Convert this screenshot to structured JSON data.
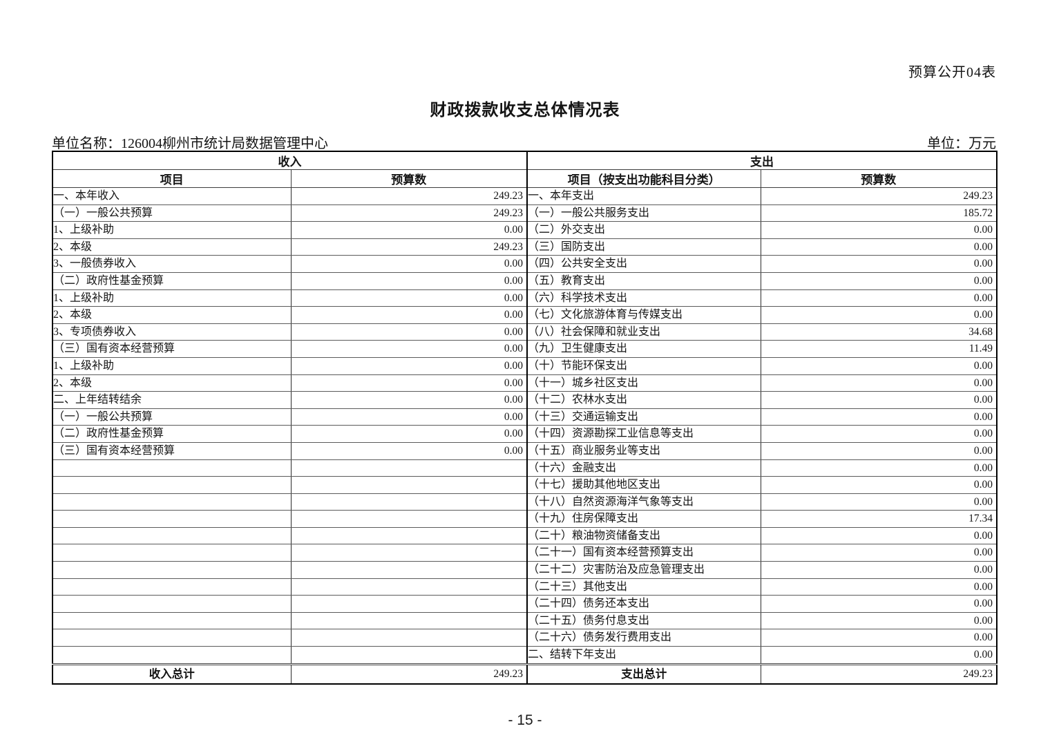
{
  "header": {
    "doc_label": "预算公开04表",
    "title": "财政拨款收支总体情况表",
    "unit_name": "单位名称：126004柳州市统计局数据管理中心",
    "unit": "单位：万元"
  },
  "table": {
    "income_header": "收入",
    "expense_header": "支出",
    "col_headers": [
      "项目",
      "预算数",
      "项目（按支出功能科目分类）",
      "预算数"
    ],
    "rows": [
      {
        "income_label": "一、本年收入",
        "income_value": "249.23",
        "income_level": 0,
        "expense_label": "一、本年支出",
        "expense_value": "249.23",
        "expense_level": 0
      },
      {
        "income_label": "（一）一般公共预算",
        "income_value": "249.23",
        "income_level": 1,
        "expense_label": "（一）一般公共服务支出",
        "expense_value": "185.72",
        "expense_level": 1
      },
      {
        "income_label": "1、上级补助",
        "income_value": "0.00",
        "income_level": 2,
        "expense_label": "（二）外交支出",
        "expense_value": "0.00",
        "expense_level": 1
      },
      {
        "income_label": "2、本级",
        "income_value": "249.23",
        "income_level": 2,
        "expense_label": "（三）国防支出",
        "expense_value": "0.00",
        "expense_level": 1
      },
      {
        "income_label": "3、一般债券收入",
        "income_value": "0.00",
        "income_level": 2,
        "expense_label": "（四）公共安全支出",
        "expense_value": "0.00",
        "expense_level": 1
      },
      {
        "income_label": "（二）政府性基金预算",
        "income_value": "0.00",
        "income_level": 1,
        "expense_label": "（五）教育支出",
        "expense_value": "0.00",
        "expense_level": 1
      },
      {
        "income_label": "1、上级补助",
        "income_value": "0.00",
        "income_level": 2,
        "expense_label": "（六）科学技术支出",
        "expense_value": "0.00",
        "expense_level": 1
      },
      {
        "income_label": "2、本级",
        "income_value": "0.00",
        "income_level": 2,
        "expense_label": "（七）文化旅游体育与传媒支出",
        "expense_value": "0.00",
        "expense_level": 1
      },
      {
        "income_label": "3、专项债券收入",
        "income_value": "0.00",
        "income_level": 2,
        "expense_label": "（八）社会保障和就业支出",
        "expense_value": "34.68",
        "expense_level": 1
      },
      {
        "income_label": "（三）国有资本经营预算",
        "income_value": "0.00",
        "income_level": 1,
        "expense_label": "（九）卫生健康支出",
        "expense_value": "11.49",
        "expense_level": 1
      },
      {
        "income_label": "1、上级补助",
        "income_value": "0.00",
        "income_level": 2,
        "expense_label": "（十）节能环保支出",
        "expense_value": "0.00",
        "expense_level": 1
      },
      {
        "income_label": "2、本级",
        "income_value": "0.00",
        "income_level": 2,
        "expense_label": "（十一）城乡社区支出",
        "expense_value": "0.00",
        "expense_level": 1
      },
      {
        "income_label": "二、上年结转结余",
        "income_value": "0.00",
        "income_level": 0,
        "expense_label": "（十二）农林水支出",
        "expense_value": "0.00",
        "expense_level": 1
      },
      {
        "income_label": "（一）一般公共预算",
        "income_value": "0.00",
        "income_level": 1,
        "expense_label": "（十三）交通运输支出",
        "expense_value": "0.00",
        "expense_level": 1
      },
      {
        "income_label": "（二）政府性基金预算",
        "income_value": "0.00",
        "income_level": 1,
        "expense_label": "（十四）资源勘探工业信息等支出",
        "expense_value": "0.00",
        "expense_level": 1
      },
      {
        "income_label": "（三）国有资本经营预算",
        "income_value": "0.00",
        "income_level": 1,
        "expense_label": "（十五）商业服务业等支出",
        "expense_value": "0.00",
        "expense_level": 1
      },
      {
        "income_label": "",
        "income_value": "",
        "income_level": 0,
        "expense_label": "（十六）金融支出",
        "expense_value": "0.00",
        "expense_level": 1
      },
      {
        "income_label": "",
        "income_value": "",
        "income_level": 0,
        "expense_label": "（十七）援助其他地区支出",
        "expense_value": "0.00",
        "expense_level": 1
      },
      {
        "income_label": "",
        "income_value": "",
        "income_level": 0,
        "expense_label": "（十八）自然资源海洋气象等支出",
        "expense_value": "0.00",
        "expense_level": 1
      },
      {
        "income_label": "",
        "income_value": "",
        "income_level": 0,
        "expense_label": "（十九）住房保障支出",
        "expense_value": "17.34",
        "expense_level": 1
      },
      {
        "income_label": "",
        "income_value": "",
        "income_level": 0,
        "expense_label": "（二十）粮油物资储备支出",
        "expense_value": "0.00",
        "expense_level": 1
      },
      {
        "income_label": "",
        "income_value": "",
        "income_level": 0,
        "expense_label": "（二十一）国有资本经营预算支出",
        "expense_value": "0.00",
        "expense_level": 1
      },
      {
        "income_label": "",
        "income_value": "",
        "income_level": 0,
        "expense_label": "（二十二）灾害防治及应急管理支出",
        "expense_value": "0.00",
        "expense_level": 1
      },
      {
        "income_label": "",
        "income_value": "",
        "income_level": 0,
        "expense_label": "（二十三）其他支出",
        "expense_value": "0.00",
        "expense_level": 1
      },
      {
        "income_label": "",
        "income_value": "",
        "income_level": 0,
        "expense_label": "（二十四）债务还本支出",
        "expense_value": "0.00",
        "expense_level": 1
      },
      {
        "income_label": "",
        "income_value": "",
        "income_level": 0,
        "expense_label": "（二十五）债务付息支出",
        "expense_value": "0.00",
        "expense_level": 1
      },
      {
        "income_label": "",
        "income_value": "",
        "income_level": 0,
        "expense_label": "（二十六）债务发行费用支出",
        "expense_value": "0.00",
        "expense_level": 1
      },
      {
        "income_label": "",
        "income_value": "",
        "income_level": 0,
        "expense_label": "二、结转下年支出",
        "expense_value": "0.00",
        "expense_level": 0
      }
    ],
    "total_row": {
      "income_total_label": "收入总计",
      "income_total_value": "249.23",
      "expense_total_label": "支出总计",
      "expense_total_value": "249.23"
    }
  },
  "footer": {
    "page_number": "- 15 -"
  }
}
